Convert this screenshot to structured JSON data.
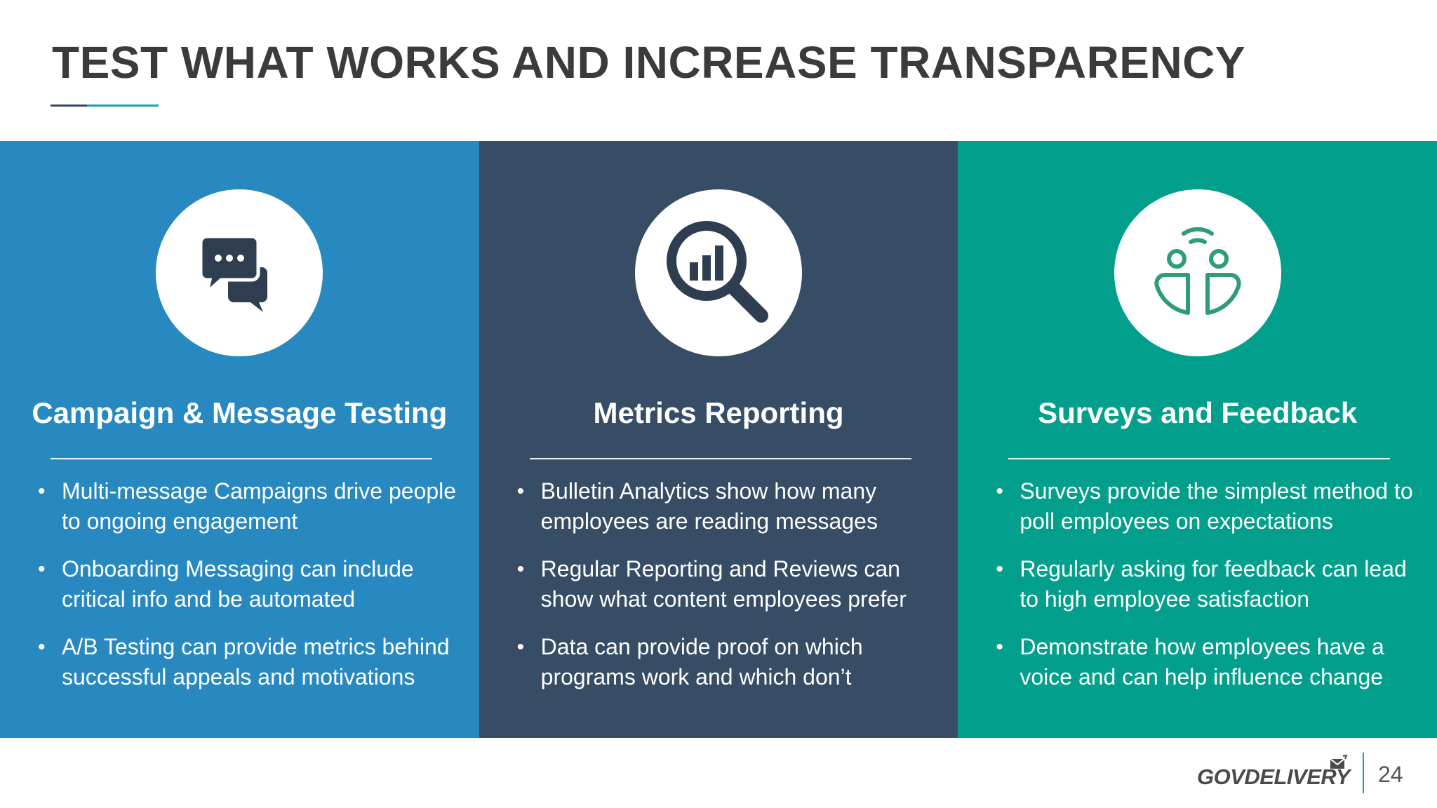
{
  "slide": {
    "title": "TEST WHAT WORKS AND INCREASE TRANSPARENCY",
    "page_number": "24"
  },
  "colors": {
    "panel_1": "#2889c1",
    "panel_2": "#374d65",
    "panel_3": "#02a08c",
    "accent_rule": "#1f9eb0"
  },
  "panels": [
    {
      "icon": "chat-bubbles-icon",
      "heading": "Campaign & Message Testing",
      "bullets": [
        "Multi-message Campaigns drive people to ongoing engagement",
        "Onboarding Messaging can include critical info and be automated",
        "A/B Testing can provide metrics behind successful appeals and motivations"
      ]
    },
    {
      "icon": "magnifier-chart-icon",
      "heading": "Metrics Reporting",
      "bullets": [
        "Bulletin Analytics show how many employees are reading messages",
        "Regular Reporting and Reviews can show what content employees prefer",
        "Data can provide proof on which programs work and which don’t"
      ]
    },
    {
      "icon": "people-signal-icon",
      "heading": "Surveys and Feedback",
      "bullets": [
        "Surveys provide the simplest method to poll employees on expectations",
        "Regularly asking for feedback can lead to high employee satisfaction",
        "Demonstrate how employees have a voice and can help influence change"
      ]
    }
  ],
  "footer": {
    "logo_text": "GOVDELIVERY",
    "logo_icon": "envelope-icon"
  }
}
